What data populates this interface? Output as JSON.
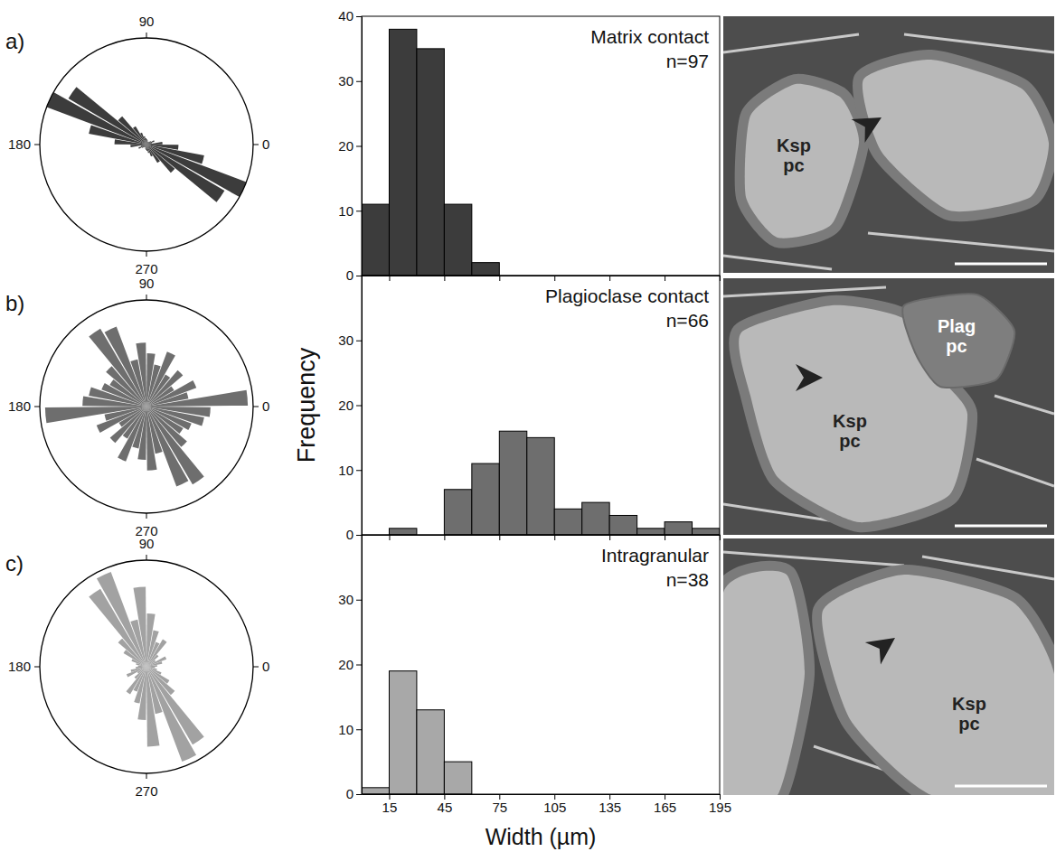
{
  "chart_data": [
    {
      "type": "rose",
      "panel": "a)",
      "color": "#3c3c3c",
      "bins": [
        0,
        10,
        20,
        30,
        40,
        50,
        60,
        70,
        80,
        90,
        100,
        110,
        120,
        130,
        140,
        150,
        160,
        170,
        180
      ],
      "values": [
        0.15,
        0.05,
        0.08,
        0.05,
        0.04,
        0.03,
        0.03,
        0.04,
        0.05,
        0.06,
        0.08,
        0.12,
        0.2,
        0.35,
        0.85,
        1.0,
        0.55,
        0.3
      ],
      "rlim": [
        0,
        1
      ],
      "angular_ticks": [
        0,
        90,
        180,
        270
      ]
    },
    {
      "type": "histogram",
      "title": "Matrix contact",
      "annotation": "n=97",
      "color": "#3c3c3c",
      "bins": [
        0,
        15,
        30,
        45,
        60,
        75
      ],
      "counts": [
        11,
        38,
        35,
        11,
        2
      ],
      "xlim": [
        0,
        195
      ],
      "xticks": [
        15,
        45,
        75,
        105,
        135,
        165,
        195
      ],
      "ylim": [
        0,
        40
      ],
      "yticks": [
        0,
        10,
        20,
        30,
        40
      ],
      "tick_labels": "y"
    },
    {
      "type": "rose",
      "panel": "b)",
      "color": "#6e6e6e",
      "bins": [
        0,
        10,
        20,
        30,
        40,
        50,
        60,
        70,
        80,
        90,
        100,
        110,
        120,
        130,
        140,
        150,
        160,
        170,
        180
      ],
      "values": [
        0.95,
        0.4,
        0.5,
        0.3,
        0.45,
        0.35,
        0.55,
        0.4,
        0.5,
        0.6,
        0.45,
        0.8,
        0.85,
        0.5,
        0.4,
        0.45,
        0.55,
        0.6
      ],
      "rlim": [
        0,
        1
      ],
      "angular_ticks": [
        0,
        90,
        180,
        270
      ]
    },
    {
      "type": "histogram",
      "title": "Plagioclase contact",
      "annotation": "n=66",
      "color": "#6e6e6e",
      "bins": [
        15,
        30,
        45,
        60,
        75,
        90,
        105,
        120,
        135,
        150,
        165,
        180,
        195
      ],
      "counts": [
        1,
        0,
        7,
        11,
        16,
        15,
        4,
        5,
        3,
        1,
        2,
        1
      ],
      "xlim": [
        0,
        195
      ],
      "xticks": [
        15,
        45,
        75,
        105,
        135,
        165,
        195
      ],
      "ylim": [
        0,
        40
      ],
      "yticks": [
        0,
        10,
        20,
        30
      ],
      "tick_labels": "y",
      "y_label": "Frequency"
    },
    {
      "type": "rose",
      "panel": "c)",
      "color": "#a2a2a2",
      "bins": [
        0,
        10,
        20,
        30,
        40,
        50,
        60,
        70,
        80,
        90,
        100,
        110,
        120,
        130,
        140,
        150,
        160,
        170,
        180
      ],
      "values": [
        0.1,
        0.15,
        0.2,
        0.1,
        0.15,
        0.3,
        0.25,
        0.35,
        0.5,
        0.75,
        0.45,
        0.95,
        0.85,
        0.35,
        0.25,
        0.15,
        0.1,
        0.08
      ],
      "rlim": [
        0,
        1
      ],
      "angular_ticks": [
        0,
        90,
        180,
        270
      ]
    },
    {
      "type": "histogram",
      "title": "Intragranular",
      "annotation": "n=38",
      "color": "#a8a8a8",
      "bins": [
        0,
        15,
        30,
        45,
        60
      ],
      "counts": [
        1,
        19,
        13,
        5
      ],
      "xlim": [
        0,
        195
      ],
      "xticks": [
        15,
        45,
        75,
        105,
        135,
        165,
        195
      ],
      "ylim": [
        0,
        40
      ],
      "yticks": [
        0,
        10,
        20,
        30
      ],
      "x_label": "Width (µm)"
    }
  ],
  "images": [
    {
      "labels": [
        "Ksp pc"
      ]
    },
    {
      "labels": [
        "Plag pc",
        "Ksp pc"
      ]
    },
    {
      "labels": [
        "Ksp pc"
      ]
    }
  ]
}
